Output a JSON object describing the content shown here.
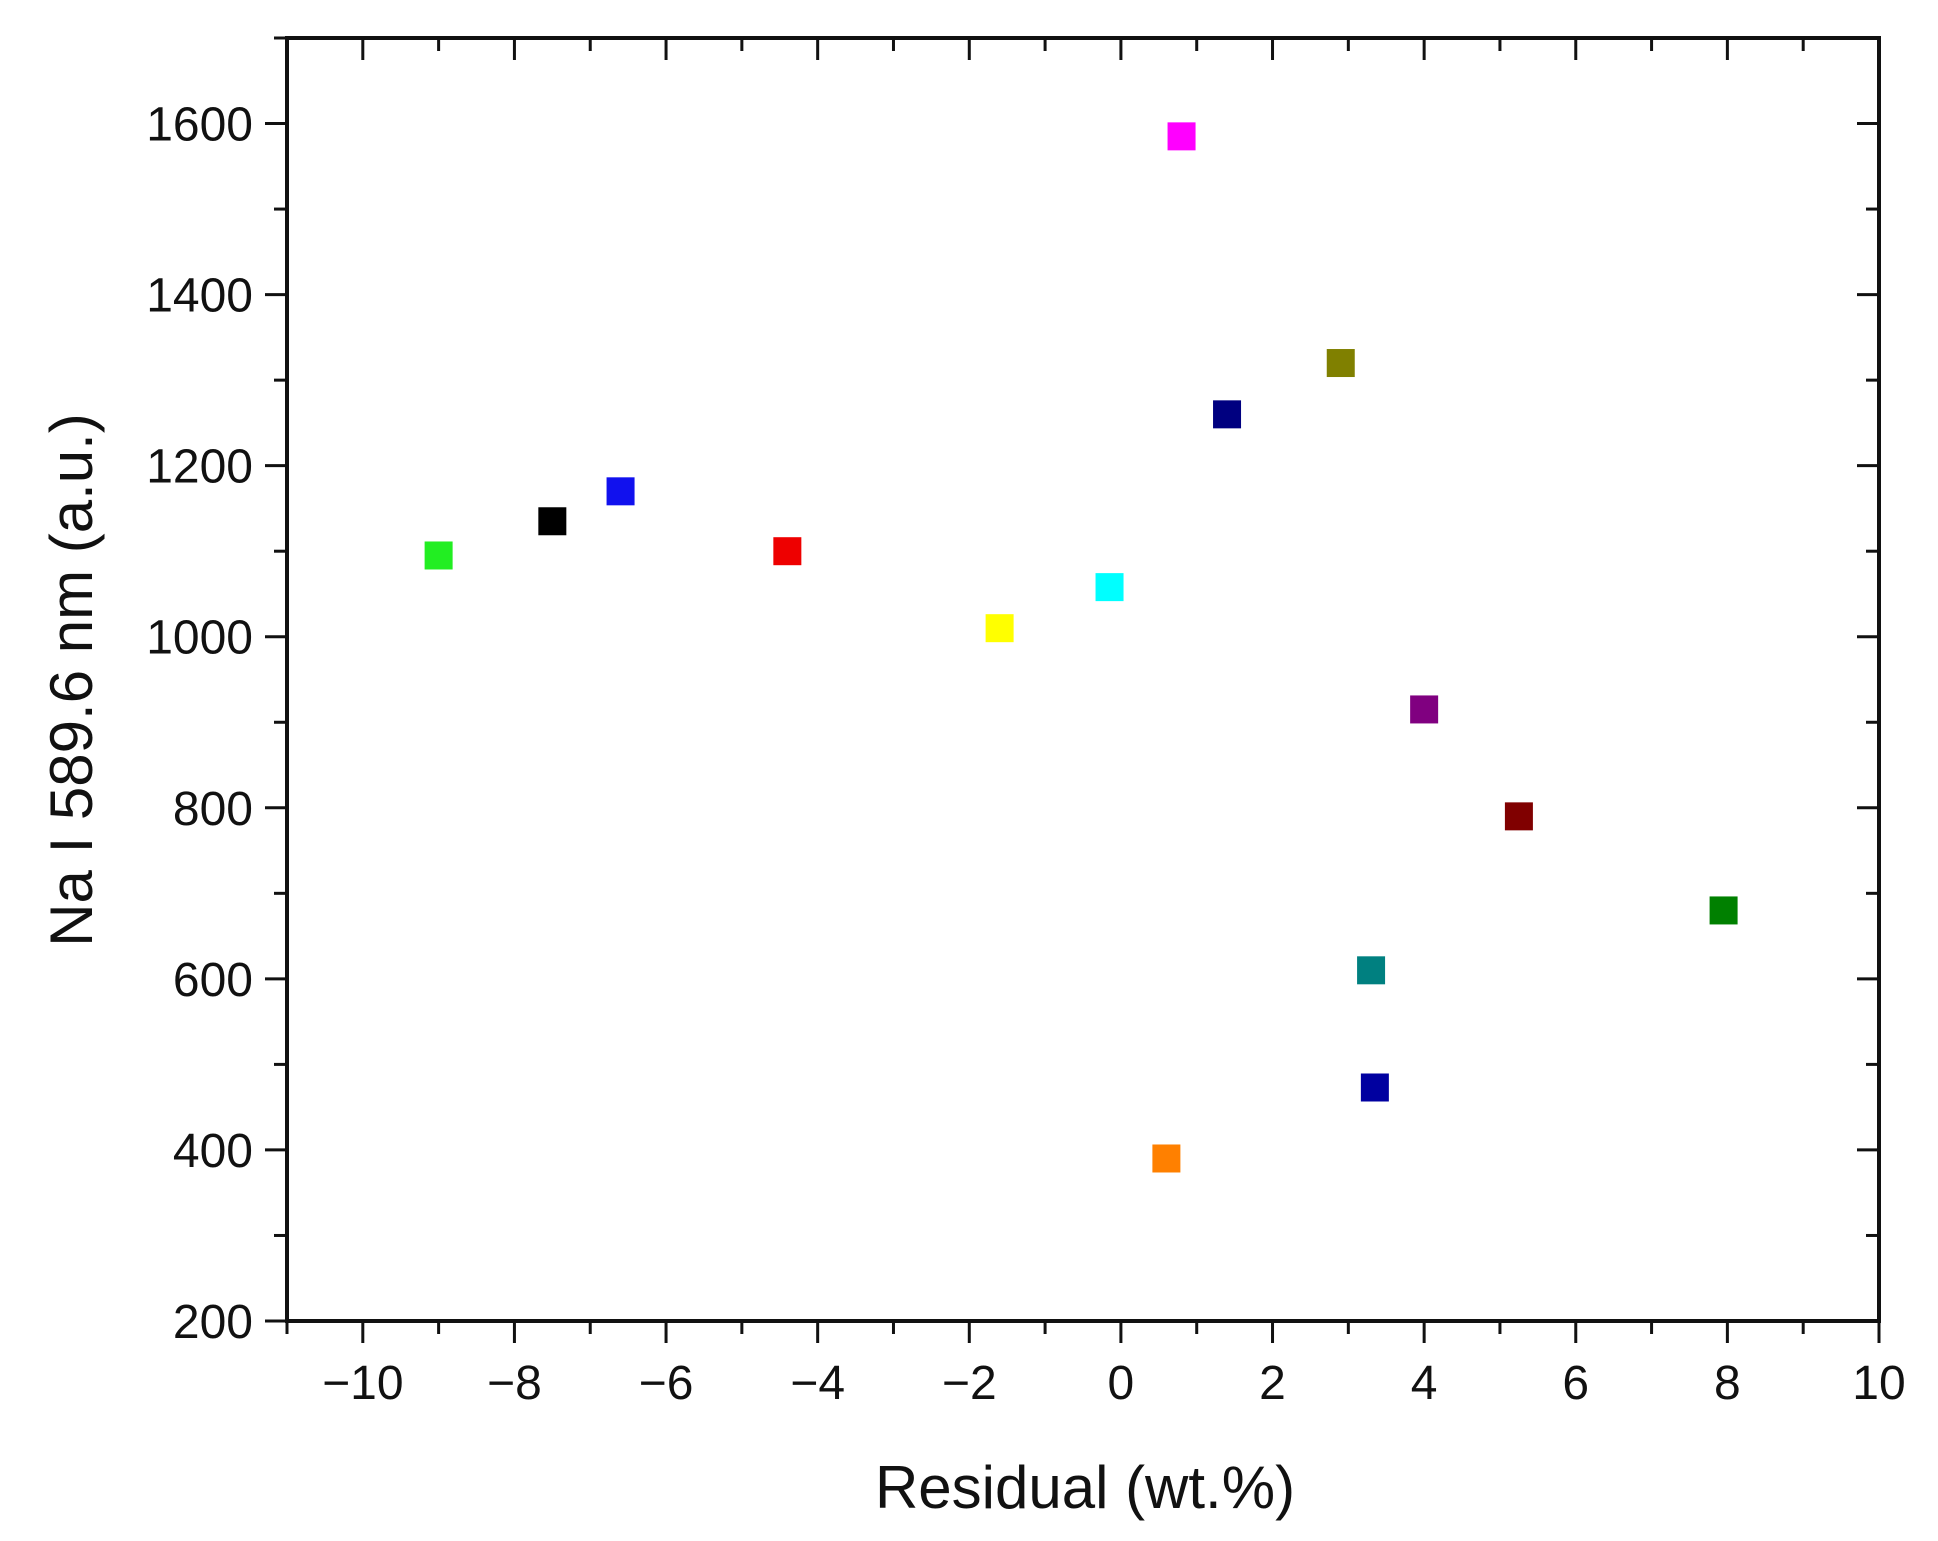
{
  "chart_data": {
    "type": "scatter",
    "title": "",
    "xlabel": "Residual (wt.%)",
    "ylabel": "Na I 589.6 nm (a.u.)",
    "xlim": [
      -11,
      10
    ],
    "ylim": [
      200,
      1700
    ],
    "x_ticks": [
      -10,
      -8,
      -6,
      -4,
      -2,
      0,
      2,
      4,
      6,
      8,
      10
    ],
    "x_tick_labels": [
      "−10",
      "−8",
      "−6",
      "−4",
      "−2",
      "0",
      "2",
      "4",
      "6",
      "8",
      "10"
    ],
    "y_ticks": [
      200,
      400,
      600,
      800,
      1000,
      1200,
      1400,
      1600
    ],
    "y_tick_labels": [
      "200",
      "400",
      "600",
      "800",
      "1000",
      "1200",
      "1400",
      "1600"
    ],
    "grid": false,
    "marker": "square",
    "points": [
      {
        "x": -9.0,
        "y": 1095,
        "color": "#22ee22"
      },
      {
        "x": -7.5,
        "y": 1135,
        "color": "#000000"
      },
      {
        "x": -6.6,
        "y": 1170,
        "color": "#1111ee"
      },
      {
        "x": -4.4,
        "y": 1100,
        "color": "#ee0000"
      },
      {
        "x": -1.6,
        "y": 1010,
        "color": "#ffff00"
      },
      {
        "x": -0.15,
        "y": 1058,
        "color": "#00ffff"
      },
      {
        "x": 0.6,
        "y": 390,
        "color": "#ff8000"
      },
      {
        "x": 0.8,
        "y": 1585,
        "color": "#ff00ff"
      },
      {
        "x": 1.4,
        "y": 1260,
        "color": "#000080"
      },
      {
        "x": 2.9,
        "y": 1320,
        "color": "#808000"
      },
      {
        "x": 3.3,
        "y": 610,
        "color": "#008080"
      },
      {
        "x": 3.35,
        "y": 473,
        "color": "#0000a0"
      },
      {
        "x": 4.0,
        "y": 915,
        "color": "#800080"
      },
      {
        "x": 5.25,
        "y": 790,
        "color": "#800000"
      },
      {
        "x": 7.95,
        "y": 680,
        "color": "#008000"
      }
    ]
  }
}
